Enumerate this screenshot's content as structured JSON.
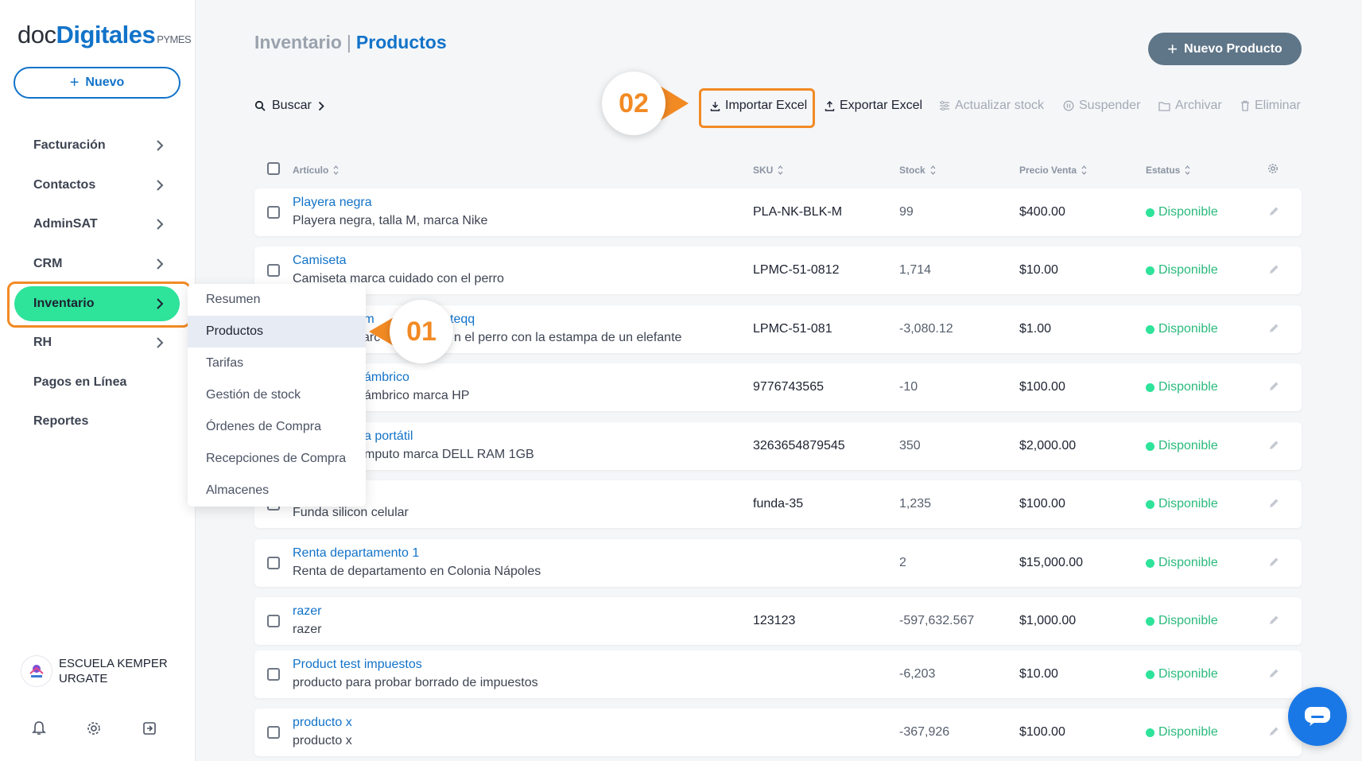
{
  "app": {
    "logo": {
      "part1": "doc",
      "part2": "Digitales",
      "part3": "PYMES"
    },
    "new_button": "Nuevo"
  },
  "sidebar": {
    "items": [
      {
        "label": "Facturación",
        "has_chevron": true
      },
      {
        "label": "Contactos",
        "has_chevron": true
      },
      {
        "label": "AdminSAT",
        "has_chevron": true
      },
      {
        "label": "CRM",
        "has_chevron": true
      },
      {
        "label": "Inventario",
        "has_chevron": true,
        "active": true
      },
      {
        "label": "RH",
        "has_chevron": true
      },
      {
        "label": "Pagos en Línea",
        "has_chevron": false
      },
      {
        "label": "Reportes",
        "has_chevron": false
      }
    ],
    "profile": {
      "name": "ESCUELA KEMPER URGATE"
    },
    "footer_icons": [
      "bell-icon",
      "gear-icon",
      "logout-icon"
    ]
  },
  "submenu": {
    "items": [
      "Resumen",
      "Productos",
      "Tarifas",
      "Gestión de stock",
      "Órdenes de Compra",
      "Recepciones de Compra",
      "Almacenes"
    ],
    "selected": "Productos"
  },
  "header": {
    "breadcrumb_parent": "Inventario",
    "breadcrumb_sep": "|",
    "breadcrumb_current": "Productos",
    "new_product_button": "Nuevo Producto"
  },
  "toolbar": {
    "search_label": "Buscar",
    "import_label": "Importar Excel",
    "export_label": "Exportar Excel",
    "update_stock_label": "Actualizar stock",
    "suspend_label": "Suspender",
    "archive_label": "Archivar",
    "delete_label": "Eliminar"
  },
  "steps": {
    "step1": "01",
    "step2": "02"
  },
  "table": {
    "columns": {
      "article": "Artículo",
      "sku": "SKU",
      "stock": "Stock",
      "price": "Precio Venta",
      "status": "Estatus"
    },
    "rows": [
      {
        "name": "Playera negra",
        "desc": "Playera negra, talla M, marca Nike",
        "sku": "PLA-NK-BLK-M",
        "stock": "99",
        "price": "$400.00",
        "status": "Disponible"
      },
      {
        "name": "Camiseta",
        "desc": "Camiseta marca cuidado con el perro",
        "sku": "LPMC-51-0812",
        "stock": "1,714",
        "price": "$10.00",
        "status": "Disponible"
      },
      {
        "name": "tam",
        "name2": "teqq",
        "desc": "arc",
        "desc2": "n el perro con la estampa de un elefante",
        "sku": "LPMC-51-081",
        "stock": "-3,080.12",
        "price": "$1.00",
        "status": "Disponible"
      },
      {
        "name": "ámbrico",
        "desc": "ámbrico marca HP",
        "sku": "9776743565",
        "stock": "-10",
        "price": "$100.00",
        "status": "Disponible"
      },
      {
        "name": "a portátil",
        "desc": "mputo marca DELL RAM 1GB",
        "sku": "3263654879545",
        "stock": "350",
        "price": "$2,000.00",
        "status": "Disponible"
      },
      {
        "name": "",
        "desc": "Funda silicon celular",
        "sku": "funda-35",
        "stock": "1,235",
        "price": "$100.00",
        "status": "Disponible"
      },
      {
        "name": "Renta departamento 1",
        "desc": "Renta de departamento en Colonia Nápoles",
        "sku": "",
        "stock": "2",
        "price": "$15,000.00",
        "status": "Disponible"
      },
      {
        "name": "razer",
        "desc": "razer",
        "sku": "123123",
        "stock": "-597,632.567",
        "price": "$1,000.00",
        "status": "Disponible"
      },
      {
        "name": "Product test impuestos",
        "desc": "producto para probar borrado de impuestos",
        "sku": "",
        "stock": "-6,203",
        "price": "$10.00",
        "status": "Disponible"
      },
      {
        "name": "producto x",
        "desc": "producto x",
        "sku": "",
        "stock": "-367,926",
        "price": "$100.00",
        "status": "Disponible"
      }
    ]
  },
  "colors": {
    "accent": "#1273c9",
    "active_nav": "#2ee39a",
    "highlight": "#f28a24",
    "status": "#2aba7c"
  }
}
